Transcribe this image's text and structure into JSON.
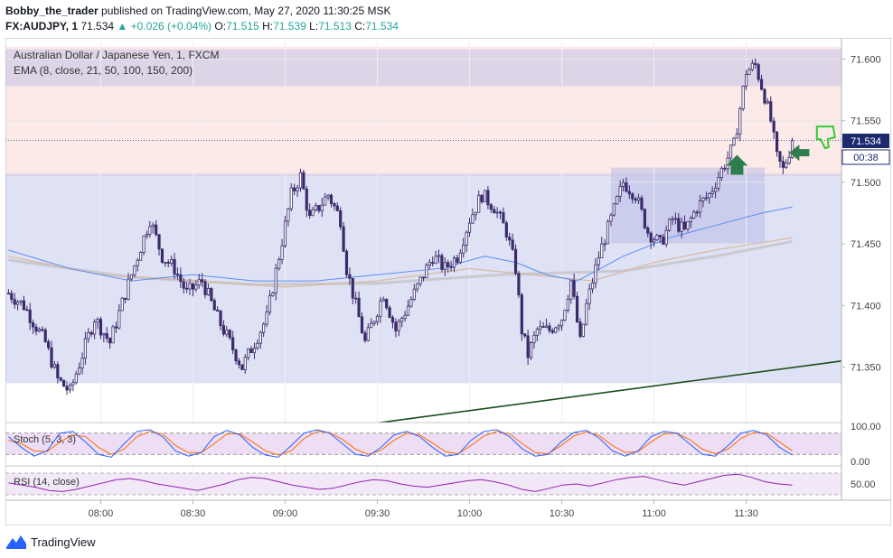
{
  "header": {
    "author": "Bobby_the_trader",
    "published_text": "published on TradingView.com, May 27, 2020 11:30:25 MSK",
    "symbol": "FX:AUDJPY, 1",
    "last": "71.534",
    "change": "+0.026 (+0.04%)",
    "o_label": "O:",
    "o_value": "71.515",
    "h_label": "H:",
    "h_value": "71.539",
    "l_label": "L:",
    "l_value": "71.513",
    "c_label": "C:",
    "c_value": "71.534"
  },
  "legend": {
    "title": "Australian Dollar / Japanese Yen, 1, FXCM",
    "ema": "EMA (8, close, 21, 50, 100, 150, 200)",
    "stoch": "Stoch (5, 3, 3)",
    "rsi": "RSI (14, close)"
  },
  "price_badge": {
    "value": "71.534",
    "countdown": "00:38"
  },
  "footer": {
    "brand": "TradingView"
  },
  "colors": {
    "up": "#26a69a",
    "down": "#ef5350",
    "candle_body": "#3a2a6b",
    "zone_blue": "#b8bde6",
    "zone_pink": "#f9d6d2",
    "trendline": "#1b4d1b",
    "stoch_k": "#2962ff",
    "stoch_d": "#ff6d00",
    "rsi": "#8e24aa"
  },
  "chart_data": {
    "type": "candlestick",
    "title": "Australian Dollar / Japanese Yen, 1, FXCM",
    "ylim": [
      71.305,
      71.615
    ],
    "y_ticks": [
      "71.600",
      "71.550",
      "71.500",
      "71.450",
      "71.400",
      "71.350"
    ],
    "x_ticks": [
      "08:00",
      "08:30",
      "09:00",
      "09:30",
      "10:00",
      "10:30",
      "11:00",
      "11:30"
    ],
    "x_tick_minutes": [
      30,
      60,
      90,
      120,
      150,
      180,
      210,
      240
    ],
    "x_range_minutes": [
      -1,
      271
    ],
    "close_path": [
      [
        0,
        71.41
      ],
      [
        5,
        71.4
      ],
      [
        12,
        71.37
      ],
      [
        16,
        71.34
      ],
      [
        20,
        71.33
      ],
      [
        24,
        71.36
      ],
      [
        28,
        71.39
      ],
      [
        33,
        71.37
      ],
      [
        38,
        71.41
      ],
      [
        42,
        71.44
      ],
      [
        46,
        71.47
      ],
      [
        50,
        71.44
      ],
      [
        54,
        71.43
      ],
      [
        58,
        71.41
      ],
      [
        63,
        71.42
      ],
      [
        68,
        71.39
      ],
      [
        72,
        71.37
      ],
      [
        76,
        71.35
      ],
      [
        80,
        71.37
      ],
      [
        84,
        71.39
      ],
      [
        88,
        71.44
      ],
      [
        92,
        71.49
      ],
      [
        95,
        71.505
      ],
      [
        98,
        71.47
      ],
      [
        101,
        71.48
      ],
      [
        104,
        71.49
      ],
      [
        108,
        71.47
      ],
      [
        110,
        71.43
      ],
      [
        113,
        71.4
      ],
      [
        116,
        71.37
      ],
      [
        119,
        71.39
      ],
      [
        122,
        71.41
      ],
      [
        126,
        71.38
      ],
      [
        130,
        71.4
      ],
      [
        134,
        71.42
      ],
      [
        138,
        71.44
      ],
      [
        142,
        71.43
      ],
      [
        146,
        71.44
      ],
      [
        150,
        71.47
      ],
      [
        154,
        71.49
      ],
      [
        158,
        71.48
      ],
      [
        162,
        71.46
      ],
      [
        165,
        71.43
      ],
      [
        167,
        71.38
      ],
      [
        169,
        71.36
      ],
      [
        172,
        71.38
      ],
      [
        176,
        71.38
      ],
      [
        180,
        71.39
      ],
      [
        183,
        71.42
      ],
      [
        186,
        71.37
      ],
      [
        188,
        71.4
      ],
      [
        192,
        71.44
      ],
      [
        196,
        71.47
      ],
      [
        200,
        71.5
      ],
      [
        204,
        71.49
      ],
      [
        208,
        71.46
      ],
      [
        212,
        71.45
      ],
      [
        216,
        71.47
      ],
      [
        220,
        71.46
      ],
      [
        224,
        71.48
      ],
      [
        228,
        71.49
      ],
      [
        232,
        71.51
      ],
      [
        236,
        71.53
      ],
      [
        238,
        71.56
      ],
      [
        240,
        71.59
      ],
      [
        243,
        71.595
      ],
      [
        246,
        71.57
      ],
      [
        248,
        71.55
      ],
      [
        250,
        71.52
      ],
      [
        252,
        71.51
      ],
      [
        254,
        71.525
      ],
      [
        255,
        71.534
      ]
    ],
    "ema_fast": [
      [
        0,
        71.445
      ],
      [
        20,
        71.43
      ],
      [
        40,
        71.42
      ],
      [
        60,
        71.425
      ],
      [
        80,
        71.42
      ],
      [
        100,
        71.42
      ],
      [
        120,
        71.425
      ],
      [
        140,
        71.43
      ],
      [
        155,
        71.44
      ],
      [
        165,
        71.435
      ],
      [
        175,
        71.425
      ],
      [
        185,
        71.42
      ],
      [
        200,
        71.44
      ],
      [
        215,
        71.455
      ],
      [
        230,
        71.465
      ],
      [
        245,
        71.475
      ],
      [
        255,
        71.48
      ]
    ],
    "ema_slow": [
      [
        0,
        71.44
      ],
      [
        30,
        71.425
      ],
      [
        60,
        71.42
      ],
      [
        90,
        71.415
      ],
      [
        120,
        71.42
      ],
      [
        150,
        71.43
      ],
      [
        170,
        71.425
      ],
      [
        190,
        71.42
      ],
      [
        210,
        71.435
      ],
      [
        230,
        71.445
      ],
      [
        255,
        71.455
      ]
    ],
    "ema_slowest": [
      [
        0,
        71.437
      ],
      [
        40,
        71.423
      ],
      [
        80,
        71.417
      ],
      [
        120,
        71.418
      ],
      [
        160,
        71.425
      ],
      [
        200,
        71.428
      ],
      [
        230,
        71.44
      ],
      [
        255,
        71.452
      ]
    ],
    "zones": [
      {
        "color": "pink",
        "t0": -1,
        "t1": 271,
        "y0": 71.505,
        "y1": 71.61
      },
      {
        "color": "blue",
        "t0": -1,
        "t1": 271,
        "y0": 71.578,
        "y1": 71.608
      },
      {
        "color": "blue",
        "t0": -1,
        "t1": 271,
        "y0": 71.337,
        "y1": 71.507
      },
      {
        "color": "blue",
        "t0": 196,
        "t1": 246,
        "y0": 71.45,
        "y1": 71.512
      }
    ],
    "trendline": {
      "t0": 46,
      "y0": 71.28,
      "t1": 271,
      "y1": 71.355
    },
    "stoch": {
      "ylim": [
        -10,
        110
      ],
      "y_ticks": [
        "100.00",
        "0.00"
      ],
      "levels": [
        80,
        20
      ],
      "k": [
        70,
        40,
        15,
        30,
        80,
        85,
        55,
        20,
        12,
        50,
        85,
        90,
        70,
        30,
        15,
        25,
        70,
        88,
        75,
        40,
        18,
        12,
        45,
        80,
        90,
        80,
        50,
        20,
        15,
        40,
        75,
        85,
        70,
        40,
        15,
        20,
        60,
        85,
        90,
        70,
        35,
        15,
        20,
        55,
        82,
        88,
        65,
        30,
        15,
        30,
        70,
        85,
        80,
        50,
        20,
        15,
        45,
        80,
        88,
        75,
        40,
        18
      ],
      "d": [
        60,
        50,
        30,
        28,
        55,
        75,
        70,
        40,
        20,
        35,
        70,
        85,
        78,
        45,
        25,
        25,
        50,
        78,
        78,
        55,
        30,
        18,
        30,
        65,
        85,
        82,
        62,
        35,
        20,
        32,
        60,
        80,
        75,
        52,
        28,
        22,
        45,
        72,
        85,
        78,
        50,
        25,
        22,
        45,
        72,
        84,
        72,
        45,
        25,
        28,
        55,
        78,
        80,
        62,
        35,
        22,
        35,
        65,
        82,
        80,
        55,
        30
      ]
    },
    "rsi": {
      "ylim": [
        20,
        80
      ],
      "y_ticks": [
        "50.00"
      ],
      "levels": [
        70,
        30
      ],
      "values": [
        52,
        48,
        44,
        38,
        36,
        40,
        46,
        52,
        58,
        60,
        56,
        50,
        46,
        42,
        38,
        44,
        50,
        58,
        62,
        60,
        54,
        48,
        44,
        40,
        42,
        48,
        54,
        58,
        56,
        50,
        46,
        44,
        48,
        52,
        56,
        58,
        54,
        48,
        40,
        36,
        42,
        48,
        50,
        46,
        52,
        58,
        62,
        64,
        58,
        52,
        48,
        54,
        60,
        66,
        68,
        62,
        54,
        50,
        48
      ]
    }
  }
}
